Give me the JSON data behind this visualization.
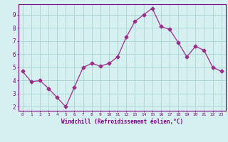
{
  "x": [
    0,
    1,
    2,
    3,
    4,
    5,
    6,
    7,
    8,
    9,
    10,
    11,
    12,
    13,
    14,
    15,
    16,
    17,
    18,
    19,
    20,
    21,
    22,
    23
  ],
  "y": [
    4.7,
    3.9,
    4.0,
    3.4,
    2.7,
    2.0,
    3.5,
    5.0,
    5.3,
    5.1,
    5.3,
    5.8,
    7.3,
    8.5,
    9.0,
    9.5,
    8.1,
    7.9,
    6.9,
    5.8,
    6.6,
    6.3,
    5.0,
    4.7
  ],
  "line_color": "#9b2d8b",
  "marker": "D",
  "marker_size": 2.5,
  "bg_color": "#d6f0ef",
  "plot_bg_color": "#d6f0ef",
  "grid_color": "#aad4d4",
  "xlabel": "Windchill (Refroidissement éolien,°C)",
  "xlabel_color": "#7a0080",
  "tick_color": "#7a0080",
  "ylabel_ticks": [
    2,
    3,
    4,
    5,
    6,
    7,
    8,
    9
  ],
  "ylim": [
    1.7,
    9.8
  ],
  "xlim": [
    -0.5,
    23.5
  ],
  "border_color": "#7a0080"
}
